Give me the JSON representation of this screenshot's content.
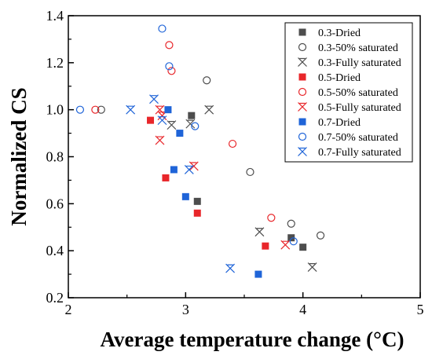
{
  "chart_data": {
    "type": "scatter",
    "xlabel": "Average temperature change (°C)",
    "ylabel": "Normalized CS",
    "xlim": [
      2,
      5
    ],
    "ylim": [
      0.2,
      1.4
    ],
    "xticks": [
      "2",
      "3",
      "4",
      "5"
    ],
    "yticks": [
      "0.2",
      "0.4",
      "0.6",
      "0.8",
      "1.0",
      "1.2",
      "1.4"
    ],
    "legend_position": "top-right",
    "grid": false,
    "series": [
      {
        "name": "0.3-Dried",
        "color": "#4d4d4d",
        "marker": "square-filled",
        "points": [
          [
            3.05,
            0.975
          ],
          [
            3.1,
            0.61
          ],
          [
            3.9,
            0.455
          ],
          [
            4.0,
            0.415
          ]
        ]
      },
      {
        "name": "0.3-50% saturated",
        "color": "#4d4d4d",
        "marker": "circle-open",
        "points": [
          [
            2.28,
            1.0
          ],
          [
            3.18,
            1.125
          ],
          [
            3.55,
            0.735
          ],
          [
            3.9,
            0.515
          ],
          [
            4.15,
            0.465
          ]
        ]
      },
      {
        "name": "0.3-Fully saturated",
        "color": "#4d4d4d",
        "marker": "star-open",
        "points": [
          [
            2.88,
            0.935
          ],
          [
            3.04,
            0.94
          ],
          [
            3.2,
            1.0
          ],
          [
            3.63,
            0.48
          ],
          [
            4.08,
            0.33
          ]
        ]
      },
      {
        "name": "0.5-Dried",
        "color": "#e8262a",
        "marker": "square-filled",
        "points": [
          [
            2.7,
            0.955
          ],
          [
            2.83,
            0.71
          ],
          [
            3.1,
            0.56
          ],
          [
            3.68,
            0.42
          ]
        ]
      },
      {
        "name": "0.5-50% saturated",
        "color": "#e8262a",
        "marker": "circle-open",
        "points": [
          [
            2.23,
            1.0
          ],
          [
            2.86,
            1.275
          ],
          [
            2.88,
            1.165
          ],
          [
            3.4,
            0.855
          ],
          [
            3.73,
            0.54
          ]
        ]
      },
      {
        "name": "0.5-Fully saturated",
        "color": "#e8262a",
        "marker": "star-open",
        "points": [
          [
            2.78,
            1.0
          ],
          [
            2.8,
            0.975
          ],
          [
            2.78,
            0.87
          ],
          [
            3.07,
            0.76
          ],
          [
            3.85,
            0.425
          ]
        ]
      },
      {
        "name": "0.7-Dried",
        "color": "#1f64d8",
        "marker": "square-filled",
        "points": [
          [
            2.85,
            1.0
          ],
          [
            2.9,
            0.745
          ],
          [
            2.95,
            0.9
          ],
          [
            3.0,
            0.63
          ],
          [
            3.62,
            0.3
          ]
        ]
      },
      {
        "name": "0.7-50% saturated",
        "color": "#1f64d8",
        "marker": "circle-open",
        "points": [
          [
            2.1,
            1.0
          ],
          [
            2.8,
            1.345
          ],
          [
            2.86,
            1.185
          ],
          [
            3.08,
            0.93
          ],
          [
            3.92,
            0.44
          ]
        ]
      },
      {
        "name": "0.7-Fully saturated",
        "color": "#1f64d8",
        "marker": "star-open",
        "points": [
          [
            2.53,
            1.0
          ],
          [
            2.73,
            1.045
          ],
          [
            2.8,
            0.955
          ],
          [
            3.03,
            0.745
          ],
          [
            3.38,
            0.325
          ]
        ]
      }
    ]
  }
}
